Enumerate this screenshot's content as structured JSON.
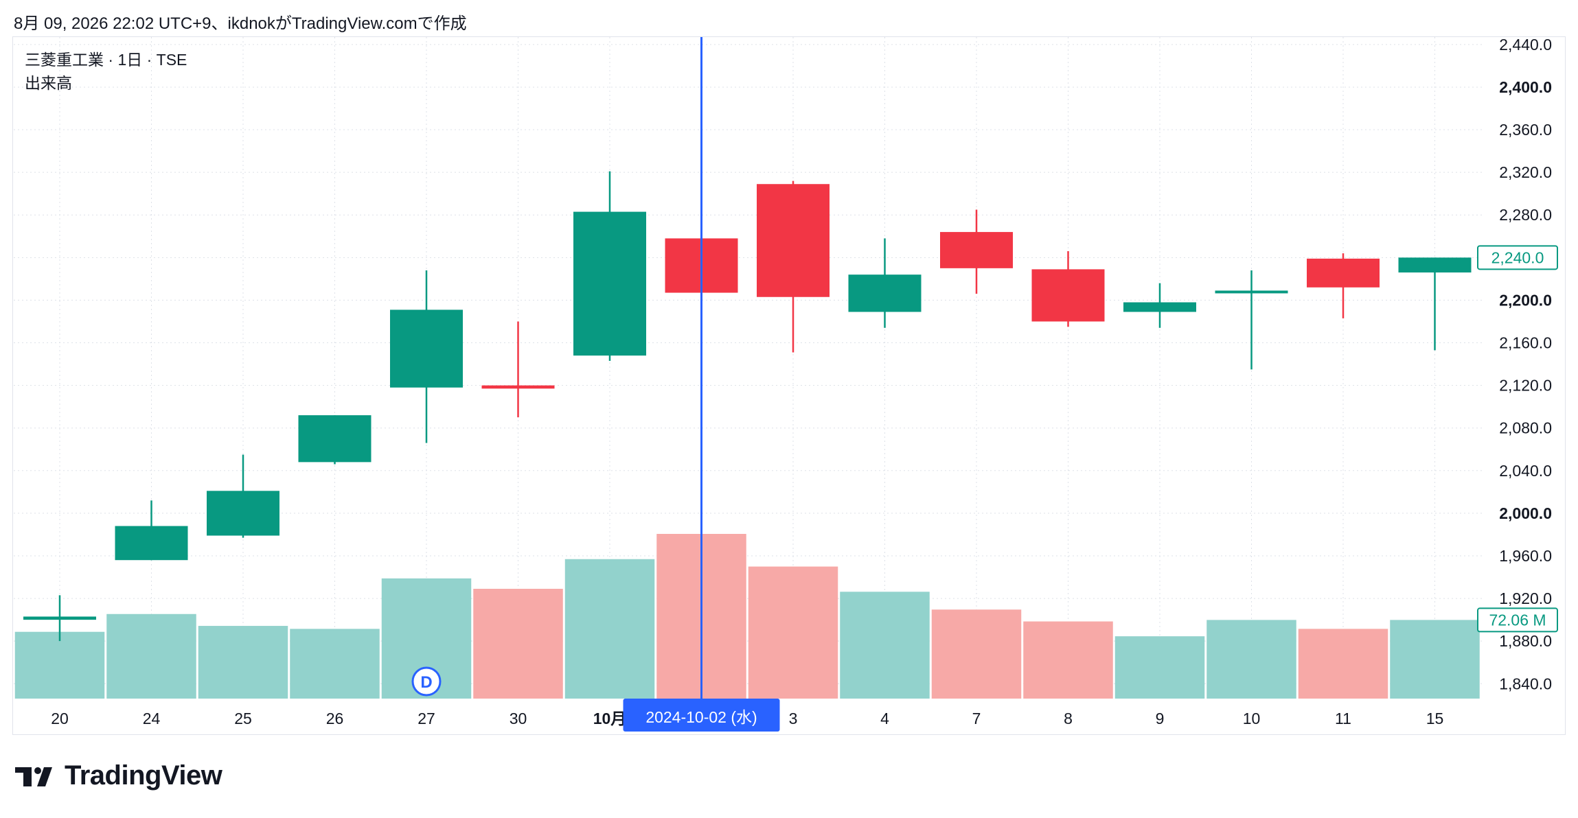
{
  "header": {
    "text": "8月 09, 2026 22:02 UTC+9、ikdnokがTradingView.comで作成"
  },
  "legend": {
    "symbol_line": "三菱重工業 · 1日 · TSE",
    "volume_label": "出来高"
  },
  "brand": {
    "name": "TradingView"
  },
  "colors": {
    "up": "#089981",
    "down": "#f23645",
    "vol_up": "#92d2cc",
    "vol_down": "#f7a9a7",
    "crosshair": "#2962ff",
    "grid": "#dde1e8"
  },
  "crosshair": {
    "date_label": "2024-10-02 (水)"
  },
  "badges": {
    "last_price": "2,240.0",
    "last_volume": "72.06 M"
  },
  "chart_data": {
    "type": "candlestick",
    "y_axis": {
      "range": [
        1826,
        2447
      ],
      "ticks": [
        "2,440.0",
        "2,400.0",
        "2,360.0",
        "2,320.0",
        "2,280.0",
        "2,240.0",
        "2,200.0",
        "2,160.0",
        "2,120.0",
        "2,080.0",
        "2,040.0",
        "2,000.0",
        "1,960.0",
        "1,920.0",
        "1,880.0",
        "1,840.0"
      ],
      "tick_values": [
        2440,
        2400,
        2360,
        2320,
        2280,
        2240,
        2200,
        2160,
        2120,
        2080,
        2040,
        2000,
        1960,
        1920,
        1880,
        1840
      ],
      "bold_ticks": [
        "2,400.0",
        "2,200.0",
        "2,000.0"
      ]
    },
    "x_labels": [
      "20",
      "24",
      "25",
      "26",
      "27",
      "30",
      "10月",
      "2",
      "3",
      "4",
      "7",
      "8",
      "9",
      "10",
      "11",
      "15"
    ],
    "candles": [
      {
        "o": 1900,
        "h": 1923,
        "l": 1880,
        "c": 1903
      },
      {
        "o": 1956,
        "h": 2012,
        "l": 1956,
        "c": 1988
      },
      {
        "o": 1979,
        "h": 2055,
        "l": 1977,
        "c": 2021
      },
      {
        "o": 2048,
        "h": 2092,
        "l": 2046,
        "c": 2092
      },
      {
        "o": 2118,
        "h": 2228,
        "l": 2066,
        "c": 2191
      },
      {
        "o": 2120,
        "h": 2180,
        "l": 2090,
        "c": 2117
      },
      {
        "o": 2148,
        "h": 2321,
        "l": 2143,
        "c": 2283
      },
      {
        "o": 2258,
        "h": 2382,
        "l": 2190,
        "c": 2207
      },
      {
        "o": 2309,
        "h": 2312,
        "l": 2151,
        "c": 2203
      },
      {
        "o": 2189,
        "h": 2258,
        "l": 2174,
        "c": 2224
      },
      {
        "o": 2264,
        "h": 2285,
        "l": 2206,
        "c": 2230
      },
      {
        "o": 2229,
        "h": 2246,
        "l": 2175,
        "c": 2180
      },
      {
        "o": 2189,
        "h": 2216,
        "l": 2174,
        "c": 2198
      },
      {
        "o": 2207,
        "h": 2228,
        "l": 2135,
        "c": 2209
      },
      {
        "o": 2239,
        "h": 2244,
        "l": 2183,
        "c": 2212
      },
      {
        "o": 2226,
        "h": 2240,
        "l": 2153,
        "c": 2240
      }
    ],
    "volume_relative": [
      0.45,
      0.57,
      0.49,
      0.47,
      0.81,
      0.74,
      0.94,
      1.11,
      0.89,
      0.72,
      0.6,
      0.52,
      0.42,
      0.53,
      0.47,
      0.53
    ],
    "volume_max_label": "72.06 M",
    "event_marker": {
      "label": "D",
      "index": 4
    },
    "crosshair_index": 7
  }
}
